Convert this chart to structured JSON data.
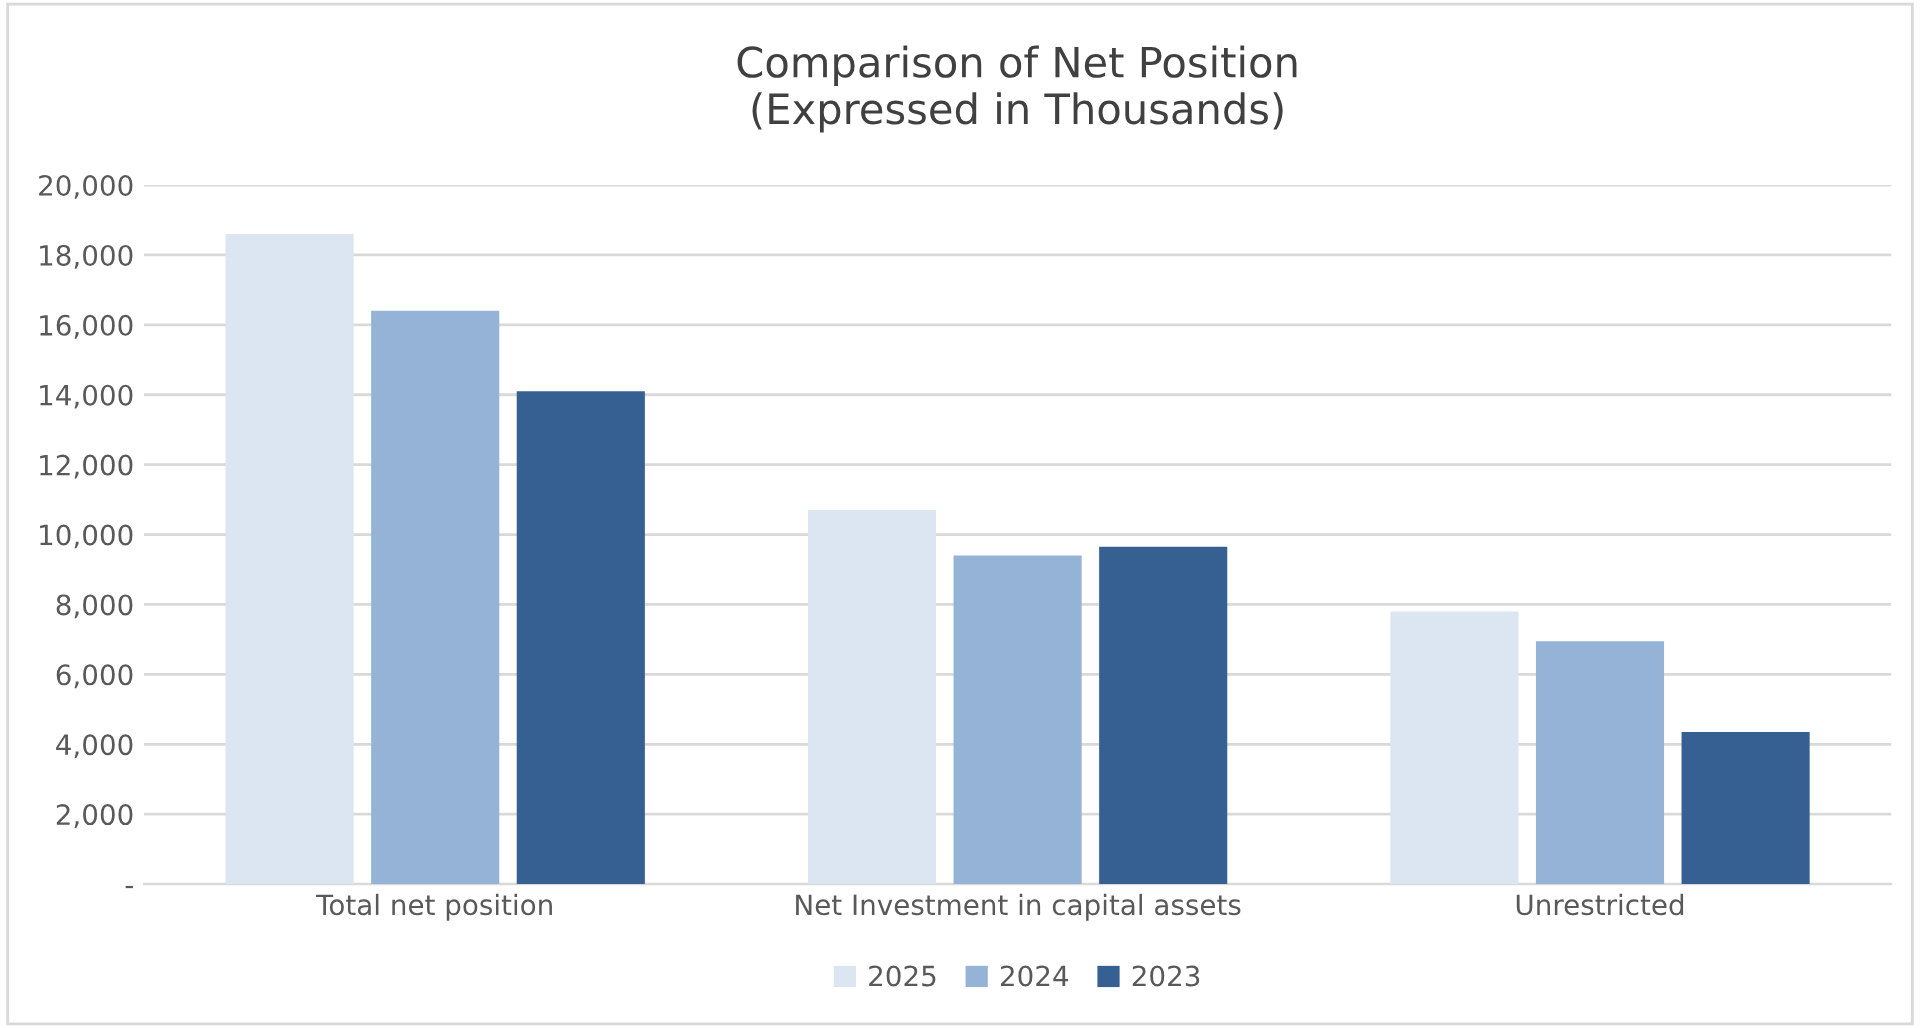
{
  "chart_data": {
    "type": "bar",
    "title": "Comparison of Net Position\n(Expressed in Thousands)",
    "categories": [
      "Total net position",
      "Net Investment in capital assets",
      "Unrestricted"
    ],
    "series": [
      {
        "name": "2025",
        "color": "#dce6f2",
        "values": [
          18600,
          10700,
          7800
        ]
      },
      {
        "name": "2024",
        "color": "#95b3d7",
        "values": [
          16400,
          9400,
          6950
        ]
      },
      {
        "name": "2023",
        "color": "#366092",
        "values": [
          14100,
          9650,
          4350
        ]
      }
    ],
    "ylim": [
      0,
      20000
    ],
    "yticks": [
      {
        "value": 0,
        "label": "-"
      },
      {
        "value": 2000,
        "label": "2,000"
      },
      {
        "value": 4000,
        "label": "4,000"
      },
      {
        "value": 6000,
        "label": "6,000"
      },
      {
        "value": 8000,
        "label": "8,000"
      },
      {
        "value": 10000,
        "label": "10,000"
      },
      {
        "value": 12000,
        "label": "12,000"
      },
      {
        "value": 14000,
        "label": "14,000"
      },
      {
        "value": 16000,
        "label": "16,000"
      },
      {
        "value": 18000,
        "label": "18,000"
      },
      {
        "value": 20000,
        "label": "20,000"
      }
    ],
    "grid": "y",
    "legend": "bottom"
  }
}
